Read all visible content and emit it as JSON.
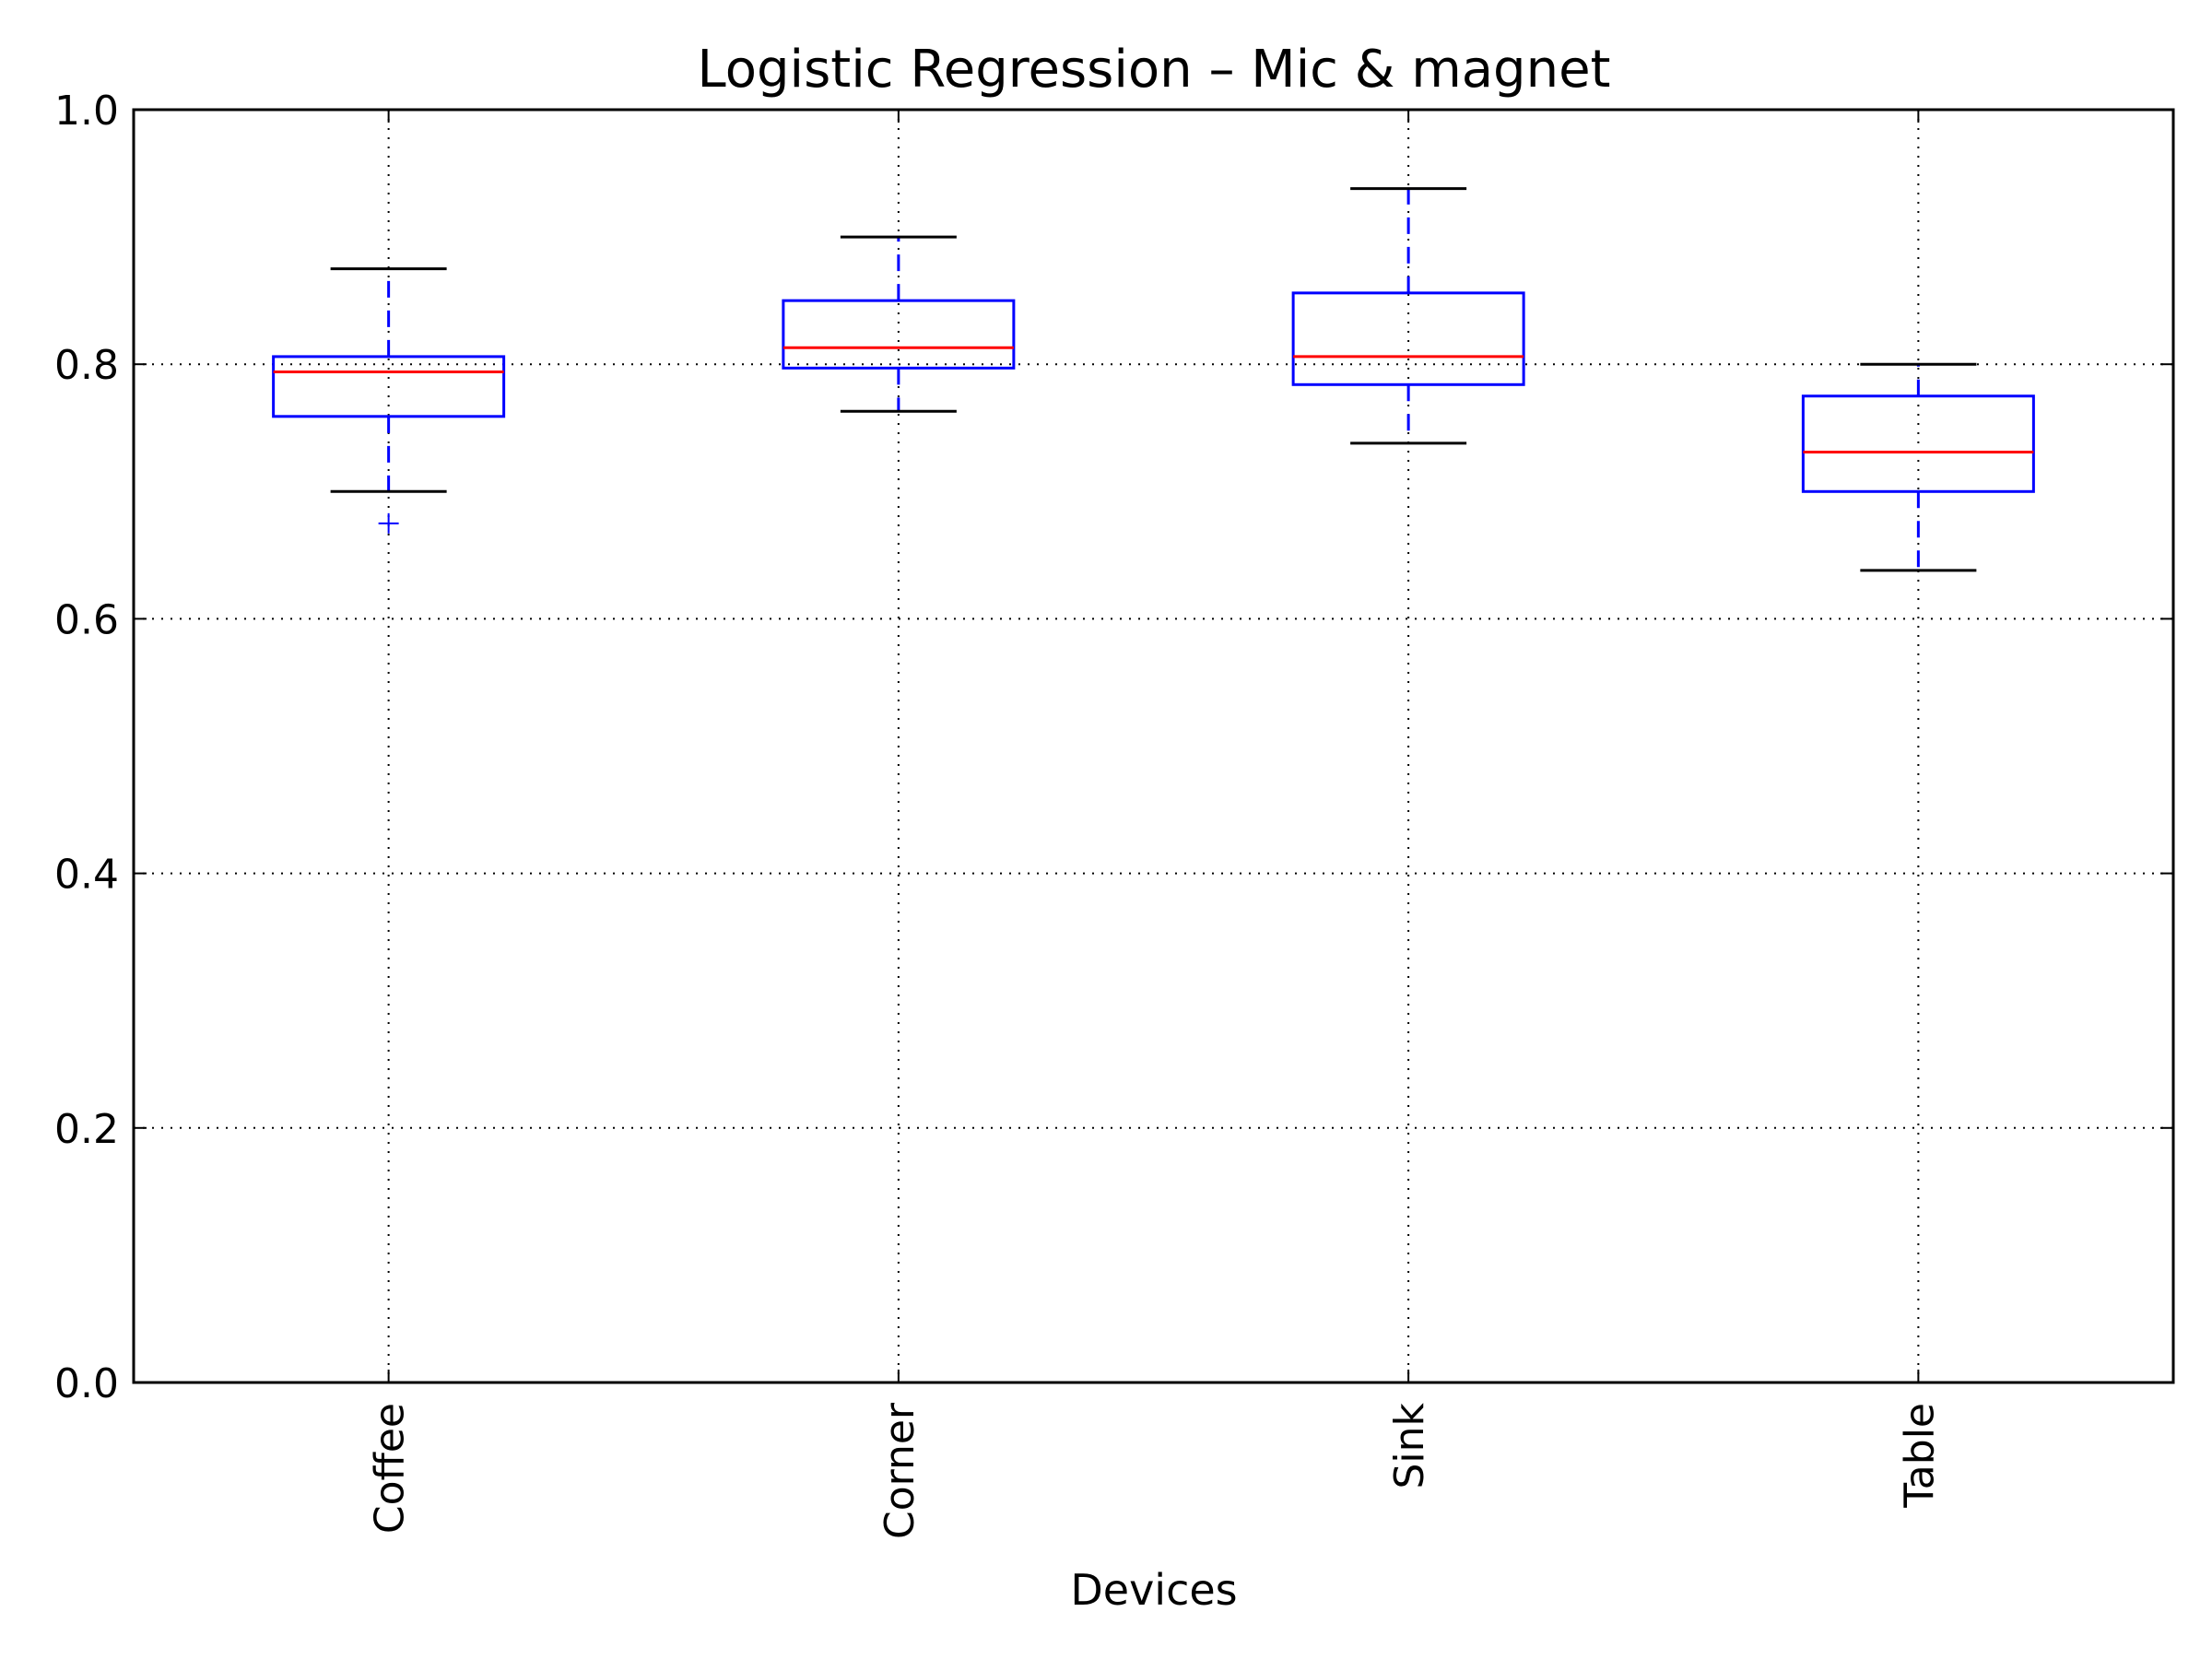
{
  "chart_data": {
    "type": "box",
    "title": "Logistic Regression – Mic & magnet",
    "xlabel": "Devices",
    "ylabel": "",
    "ylim": [
      0.0,
      1.0
    ],
    "yticks": [
      "0.0",
      "0.2",
      "0.4",
      "0.6",
      "0.8",
      "1.0"
    ],
    "grid": true,
    "categories": [
      "Coffee",
      "Corner",
      "Sink",
      "Table"
    ],
    "boxes": [
      {
        "category": "Coffee",
        "whisker_low": 0.7,
        "q1": 0.759,
        "median": 0.794,
        "q3": 0.806,
        "whisker_high": 0.875,
        "outliers": [
          0.675
        ]
      },
      {
        "category": "Corner",
        "whisker_low": 0.763,
        "q1": 0.797,
        "median": 0.813,
        "q3": 0.85,
        "whisker_high": 0.9,
        "outliers": []
      },
      {
        "category": "Sink",
        "whisker_low": 0.738,
        "q1": 0.784,
        "median": 0.806,
        "q3": 0.856,
        "whisker_high": 0.938,
        "outliers": []
      },
      {
        "category": "Table",
        "whisker_low": 0.638,
        "q1": 0.7,
        "median": 0.731,
        "q3": 0.775,
        "whisker_high": 0.8,
        "outliers": []
      }
    ],
    "colors": {
      "box": "#0000ff",
      "median": "#ff0000",
      "cap": "#000000",
      "grid": "#000000"
    }
  }
}
